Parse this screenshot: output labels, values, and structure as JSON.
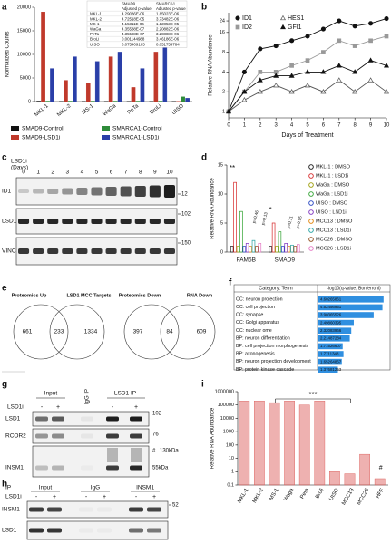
{
  "panel_labels": [
    "a",
    "b",
    "c",
    "d",
    "e",
    "f",
    "g",
    "h",
    "i"
  ],
  "chart_data": [
    {
      "type": "bar",
      "ylabel": "Normalized Counts",
      "categories": [
        "MKL-1",
        "MKL-2",
        "MS-1",
        "WaGa",
        "PeTa",
        "BroLi",
        "UISO"
      ],
      "series": [
        {
          "name": "SMAD9-Control",
          "color": "#111111",
          "values": [
            100,
            50,
            50,
            50,
            50,
            50,
            50
          ]
        },
        {
          "name": "SMAD9-LSD1i",
          "color": "#c0392b",
          "values": [
            19000,
            4500,
            4000,
            9500,
            3000,
            10500,
            50
          ]
        },
        {
          "name": "SMARCA1-Control",
          "color": "#2e8b3a",
          "values": [
            100,
            100,
            100,
            100,
            100,
            100,
            1000
          ]
        },
        {
          "name": "SMARCA1-LSD1i",
          "color": "#2a3fa8",
          "values": [
            7000,
            9500,
            8500,
            10500,
            7000,
            11500,
            700
          ]
        }
      ],
      "ylim": [
        0,
        20000
      ],
      "yticks": [
        0,
        5000,
        10000,
        15000,
        20000
      ],
      "table": {
        "headers": [
          "SMAD9",
          "SMARCA1"
        ],
        "subheaders": [
          "Adjusted p-value",
          "Adjusted p-value"
        ],
        "rows": [
          [
            "MKL-1",
            "4.29086E-06",
            "1.85023E-06"
          ],
          [
            "MKL-2",
            "4.72518E-05",
            "3.73482E-06"
          ],
          [
            "MS-1",
            "4.15311E-06",
            "1.12853E-05"
          ],
          [
            "WaGa",
            "4.35588E-07",
            "2.20882E-06"
          ],
          [
            "PeTa",
            "4.35588E-07",
            "3.28888E-06"
          ],
          [
            "BroLi",
            "0.001144988",
            "3.46186E-06"
          ],
          [
            "UISO",
            "0.075409163",
            "0.051759784"
          ]
        ]
      }
    },
    {
      "type": "line",
      "ylabel": "Relative RNA Abundance",
      "xlabel": "Days of Treatment",
      "log": true,
      "x": [
        0,
        1,
        2,
        3,
        4,
        5,
        6,
        7,
        8,
        9,
        10
      ],
      "series": [
        {
          "name": "ID1",
          "color": "#111111",
          "marker": "circle",
          "filled": true,
          "values": [
            1,
            4,
            9,
            10,
            12,
            14,
            18,
            24,
            20,
            22,
            26
          ]
        },
        {
          "name": "ID2",
          "color": "#999999",
          "marker": "square",
          "filled": true,
          "values": [
            1,
            2,
            4,
            4,
            5,
            6,
            8,
            12,
            10,
            12,
            14
          ]
        },
        {
          "name": "HES1",
          "color": "#555555",
          "marker": "triangle",
          "filled": false,
          "values": [
            1,
            1.5,
            2,
            2.5,
            2,
            2.5,
            2,
            3,
            2,
            3,
            2
          ]
        },
        {
          "name": "GFI1",
          "color": "#111111",
          "marker": "triangle",
          "filled": true,
          "values": [
            1,
            2,
            3,
            3.5,
            3.5,
            4,
            4,
            5,
            4,
            6,
            5
          ]
        }
      ],
      "xlim": [
        0,
        10
      ],
      "xticks": [
        0,
        1,
        2,
        3,
        4,
        5,
        6,
        7,
        8,
        9,
        10
      ],
      "ylim": [
        0.8,
        32
      ],
      "yticks": [
        1,
        2,
        4,
        8,
        16,
        24
      ]
    },
    {
      "type": "bar",
      "ylabel": "Relative RNA Abundance",
      "categories": [
        "FAM5B",
        "SMAD9"
      ],
      "series": [
        {
          "name": "MKL-1 : DMSO",
          "color": "#111111",
          "values": [
            1,
            1
          ]
        },
        {
          "name": "MKL-1 : LSD1i",
          "color": "#d62728",
          "values": [
            12,
            5
          ]
        },
        {
          "name": "WaGa : DMSO",
          "color": "#9a9a00",
          "values": [
            1,
            1
          ]
        },
        {
          "name": "WaGa : LSD1i",
          "color": "#2ca02c",
          "values": [
            7,
            3.5
          ]
        },
        {
          "name": "UISO : DMSO",
          "color": "#1f3fbf",
          "values": [
            1,
            1
          ]
        },
        {
          "name": "UISO : LSD1i",
          "color": "#7b2fbe",
          "values": [
            1.5,
            1.5
          ]
        },
        {
          "name": "MCC13 : DMSO",
          "color": "#e08000",
          "values": [
            1,
            1
          ]
        },
        {
          "name": "MCC13 : LSD1i",
          "color": "#20a0a0",
          "values": [
            2,
            1.2
          ]
        },
        {
          "name": "MCC26 : DMSO",
          "color": "#8b4513",
          "values": [
            1,
            1
          ]
        },
        {
          "name": "MCC26 : LSD1i",
          "color": "#e377c2",
          "values": [
            1.5,
            1.3
          ]
        }
      ],
      "ylim": [
        0,
        15
      ],
      "yticks": [
        0,
        5,
        10,
        15
      ],
      "annotations": [
        "**",
        "p=0.46",
        "p=0.13",
        "*",
        "p=0.71",
        "p=0.95"
      ]
    },
    {
      "type": "barh",
      "headers": [
        "Category: Term",
        "-log10(q-value, Bonferroni)"
      ],
      "categories": [
        "CC: neuron projection",
        "CC: cell projection",
        "CC: synapse",
        "CC: Golgi apparatus",
        "CC: nuclear ome",
        "BP: neuron differentiation",
        "BP: cell projection morphogenesis",
        "BP: axonogenesis",
        "BP: neuron projection development",
        "BP: protein kinase cascade"
      ],
      "values": [
        4.60265861,
        4.52456951,
        3.90365526,
        2.49860395,
        2.32083966,
        2.21487284,
        1.71526607,
        1.7711348,
        1.65264867,
        1.37681263
      ],
      "xlim": [
        0,
        5
      ],
      "color": "#2f8fe0"
    },
    {
      "type": "bar",
      "ylabel": "Relative RNA Abundance",
      "log": true,
      "categories": [
        "MKL-1",
        "MKL-2",
        "MS-1",
        "Waga",
        "Peta",
        "Broli",
        "UISO",
        "MCC13",
        "MCC26",
        "HFF"
      ],
      "values": [
        200000,
        200000,
        150000,
        200000,
        100000,
        200000,
        1,
        0.7,
        20,
        0.3
      ],
      "color": "#d9534f",
      "ylim": [
        0.1,
        1000000
      ],
      "yticks": [
        0.1,
        1,
        10,
        100,
        1000,
        10000,
        100000,
        1000000
      ],
      "annotations": [
        "***",
        "#"
      ]
    }
  ],
  "blot_c": {
    "label": [
      "LSD1i",
      "(Days)"
    ],
    "lanes": [
      0,
      1,
      2,
      3,
      4,
      5,
      6,
      7,
      8,
      9,
      10
    ],
    "rows": [
      "ID1",
      "LSD1",
      "VINC"
    ],
    "markers": [
      12,
      102,
      150
    ]
  },
  "venn_e": [
    {
      "left": "Proteomics Up",
      "right": "LSD1 MCC Targets",
      "counts": [
        661,
        233,
        1334
      ]
    },
    {
      "left": "Proteomics Down",
      "right": "RNA Down",
      "counts": [
        397,
        84,
        609
      ]
    }
  ],
  "blot_g": {
    "columns": [
      "Input",
      "IgG IP",
      "LSD1 IP"
    ],
    "treatment": "LSD1i",
    "signs": [
      "-",
      "+",
      "-",
      "+"
    ],
    "rows": [
      "LSD1",
      "RCOR2",
      "INSM1"
    ],
    "markers": [
      "102",
      "76",
      "#",
      "130kDa",
      "55kDa"
    ]
  },
  "blot_h": {
    "ip": "IP",
    "columns": [
      "Input",
      "IgG",
      "INSM1"
    ],
    "treatment": "LSD1i",
    "signs": [
      "-",
      "+",
      "-",
      "+",
      "-",
      "+"
    ],
    "rows": [
      "INSM1",
      "LSD1"
    ],
    "markers": [
      52
    ]
  }
}
